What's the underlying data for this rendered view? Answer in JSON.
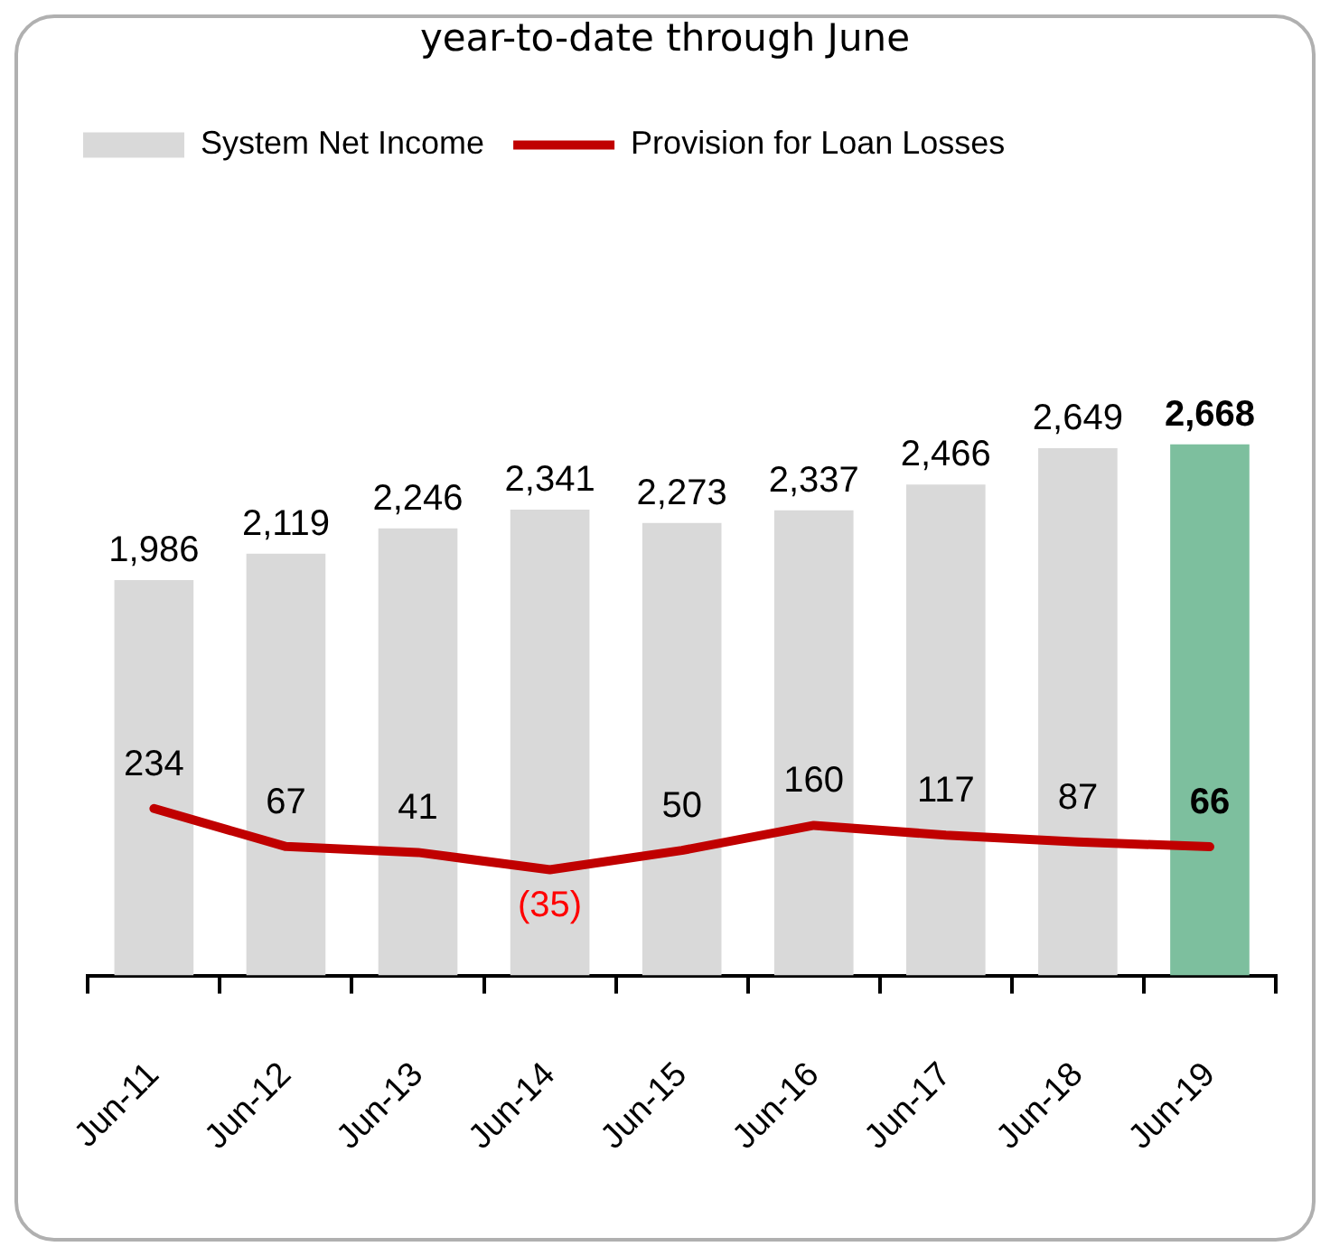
{
  "chart_data": {
    "type": "bar",
    "subtitle": "year-to-date through June",
    "categories": [
      "Jun-11",
      "Jun-12",
      "Jun-13",
      "Jun-14",
      "Jun-15",
      "Jun-16",
      "Jun-17",
      "Jun-18",
      "Jun-19"
    ],
    "series": [
      {
        "name": "System Net Income",
        "color": "#d9d9d9",
        "colors": [
          "#d9d9d9",
          "#d9d9d9",
          "#d9d9d9",
          "#d9d9d9",
          "#d9d9d9",
          "#d9d9d9",
          "#d9d9d9",
          "#d9d9d9",
          "#7dbf9e"
        ],
        "values": [
          1986,
          2119,
          2246,
          2341,
          2273,
          2337,
          2466,
          2649,
          2668
        ],
        "value_labels": [
          "1,986",
          "2,119",
          "2,246",
          "2,341",
          "2,273",
          "2,337",
          "2,466",
          "2,649",
          "2,668"
        ]
      },
      {
        "name": "Provision for Loan Losses",
        "type": "line",
        "axis": "y2",
        "color": "#c00000",
        "values": [
          234,
          67,
          41,
          -35,
          50,
          160,
          117,
          87,
          66
        ],
        "value_labels": [
          "234",
          "67",
          "41",
          "(35)",
          "50",
          "160",
          "117",
          "87",
          "66"
        ]
      }
    ],
    "legend": "top left",
    "grid": false,
    "marker": "none",
    "tick_labels": "x"
  }
}
